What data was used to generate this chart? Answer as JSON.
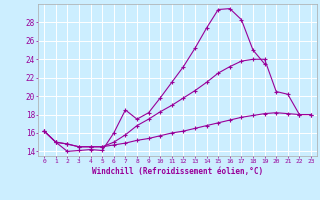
{
  "title": "",
  "xlabel": "Windchill (Refroidissement éolien,°C)",
  "background_color": "#cceeff",
  "line_color": "#990099",
  "grid_color": "#ffffff",
  "xlim": [
    -0.5,
    23.5
  ],
  "ylim": [
    13.5,
    30.0
  ],
  "yticks": [
    14,
    16,
    18,
    20,
    22,
    24,
    26,
    28
  ],
  "xticks": [
    0,
    1,
    2,
    3,
    4,
    5,
    6,
    7,
    8,
    9,
    10,
    11,
    12,
    13,
    14,
    15,
    16,
    17,
    18,
    19,
    20,
    21,
    22,
    23
  ],
  "line1_x": [
    0,
    1,
    2,
    3,
    4,
    5,
    6,
    7,
    8,
    9,
    10,
    11,
    12,
    13,
    14,
    15,
    16,
    17,
    18,
    19
  ],
  "line1_y": [
    16.2,
    15.0,
    14.0,
    14.1,
    14.2,
    14.1,
    16.0,
    18.5,
    17.5,
    18.2,
    19.8,
    21.5,
    23.2,
    25.2,
    27.4,
    29.4,
    29.5,
    28.3,
    25.0,
    23.5
  ],
  "line2_x": [
    0,
    1,
    2,
    3,
    4,
    5,
    6,
    7,
    8,
    9,
    10,
    11,
    12,
    13,
    14,
    15,
    16,
    17,
    18,
    19,
    20,
    21,
    22,
    23
  ],
  "line2_y": [
    16.2,
    15.0,
    14.8,
    14.5,
    14.5,
    14.5,
    15.0,
    15.8,
    16.8,
    17.5,
    18.3,
    19.0,
    19.8,
    20.6,
    21.5,
    22.5,
    23.2,
    23.8,
    24.0,
    24.0,
    20.5,
    20.2,
    18.0,
    18.0
  ],
  "line3_x": [
    0,
    1,
    2,
    3,
    4,
    5,
    6,
    7,
    8,
    9,
    10,
    11,
    12,
    13,
    14,
    15,
    16,
    17,
    18,
    19,
    20,
    21,
    22,
    23
  ],
  "line3_y": [
    16.2,
    15.0,
    14.8,
    14.5,
    14.5,
    14.5,
    14.7,
    14.9,
    15.2,
    15.4,
    15.7,
    16.0,
    16.2,
    16.5,
    16.8,
    17.1,
    17.4,
    17.7,
    17.9,
    18.1,
    18.2,
    18.1,
    18.0,
    18.0
  ]
}
